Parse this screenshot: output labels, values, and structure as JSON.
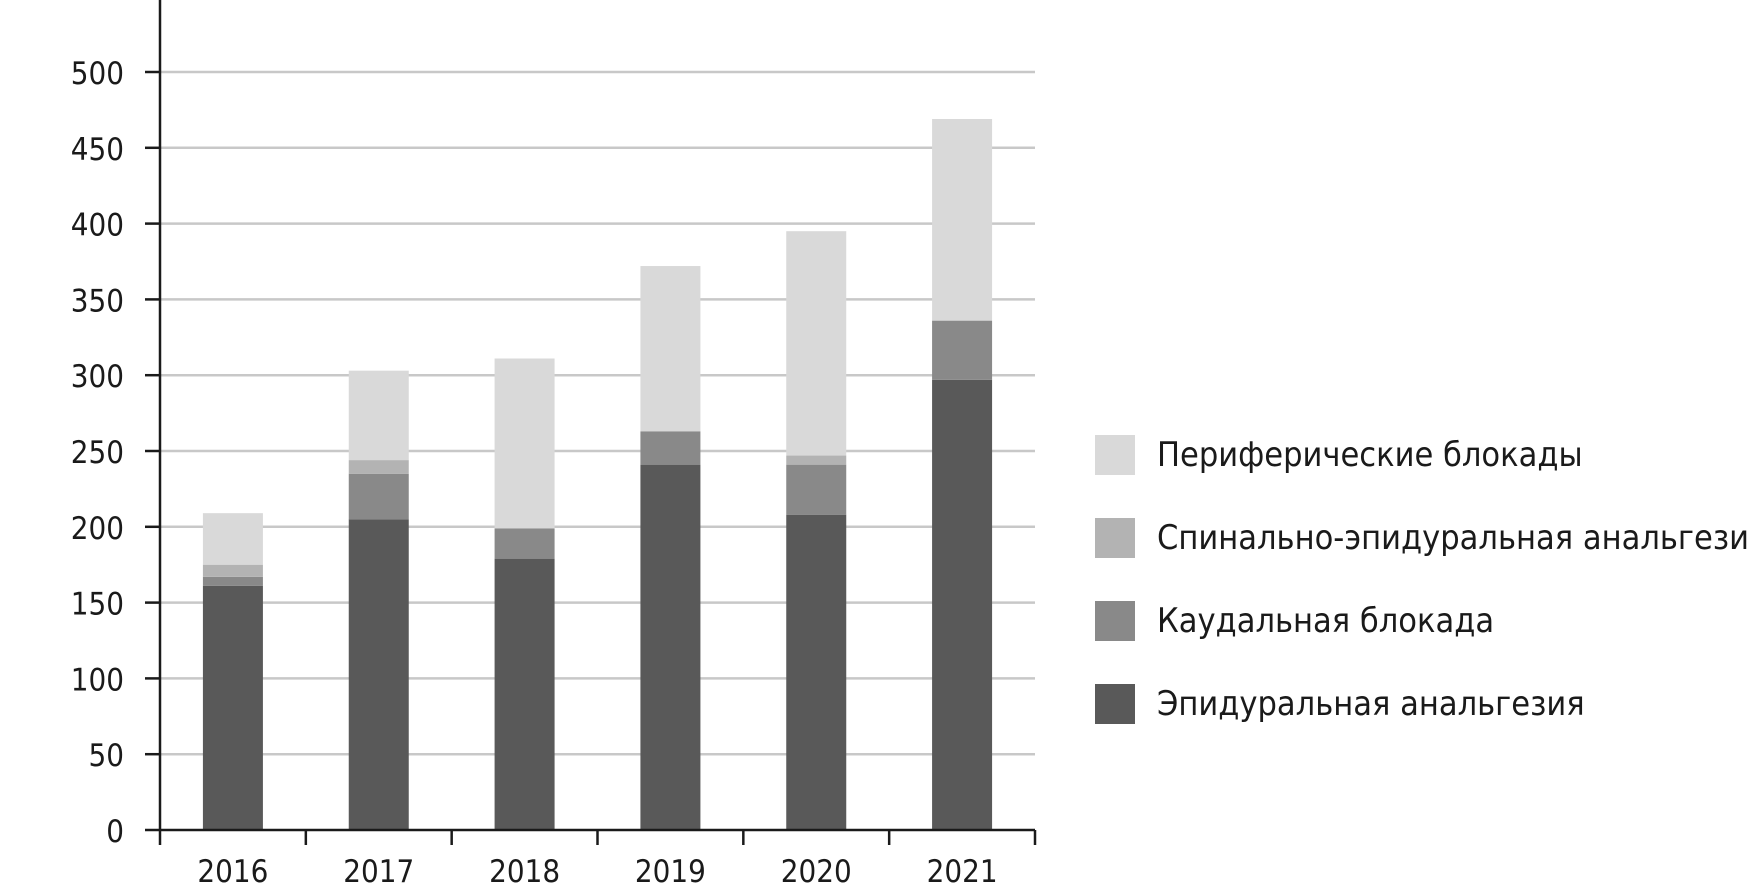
{
  "chart_data": {
    "type": "bar",
    "stacked": true,
    "title": "",
    "xlabel": "",
    "ylabel": "",
    "ylim": [
      0,
      550
    ],
    "yticks": [
      0,
      50,
      100,
      150,
      200,
      250,
      300,
      350,
      400,
      450,
      500
    ],
    "grid": "horizontal",
    "legend_position": "right",
    "categories": [
      "2016",
      "2017",
      "2018",
      "2019",
      "2020",
      "2021"
    ],
    "series": [
      {
        "name": "Эпидуральная анальгезия",
        "color": "#595959",
        "values": [
          161,
          205,
          179,
          241,
          208,
          297
        ]
      },
      {
        "name": "Каудальная блокада",
        "color": "#898989",
        "values": [
          6,
          30,
          20,
          22,
          33,
          39
        ]
      },
      {
        "name": "Спинально-эпидуральная анальгезия",
        "color": "#b3b3b3",
        "values": [
          8,
          9,
          0,
          0,
          6,
          0
        ]
      },
      {
        "name": "Периферические блокады",
        "color": "#d9d9d9",
        "values": [
          34,
          59,
          112,
          109,
          148,
          133
        ]
      }
    ],
    "legend_order": [
      3,
      2,
      1,
      0
    ]
  }
}
